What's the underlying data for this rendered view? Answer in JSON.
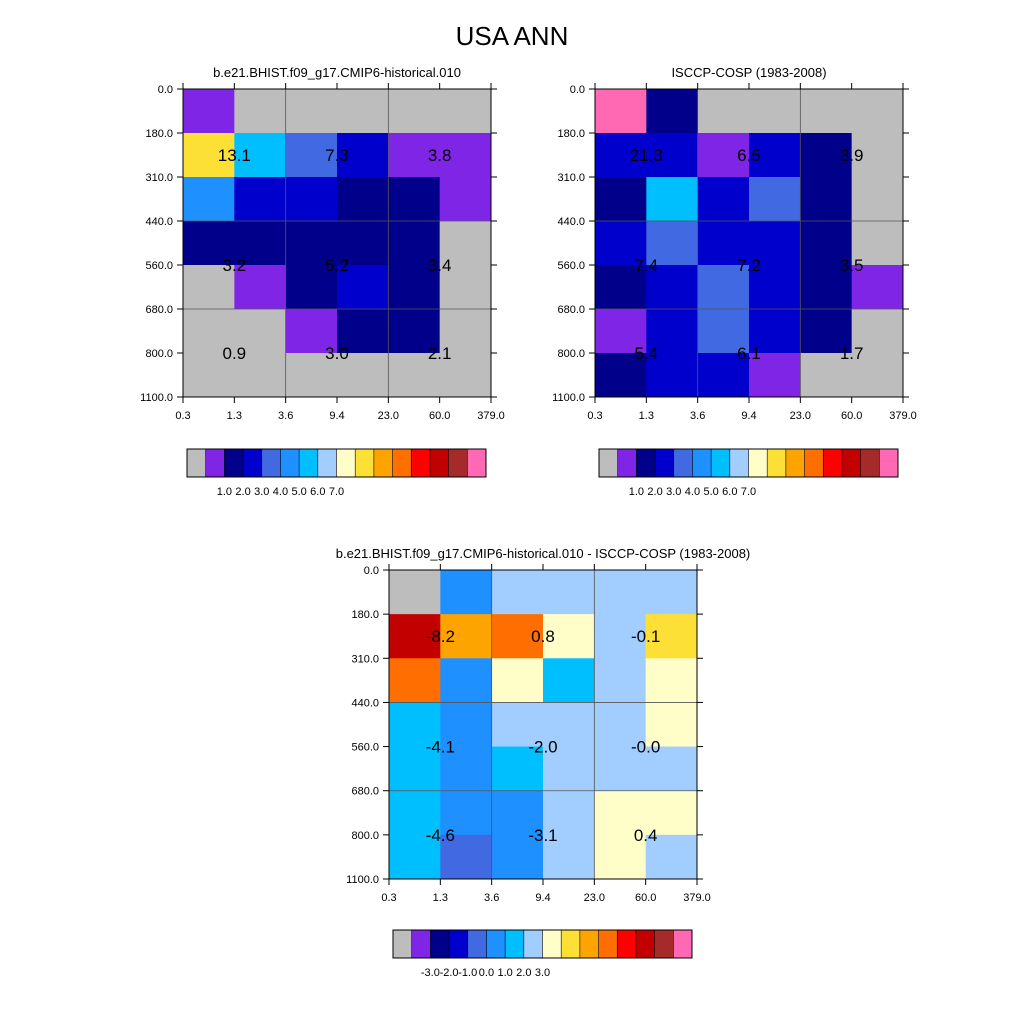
{
  "figure_title": "USA ANN",
  "chart_data": [
    {
      "type": "heatmap",
      "title": "b.e21.BHIST.f09_g17.CMIP6-historical.010",
      "x_ticks": [
        "0.3",
        "1.3",
        "3.6",
        "9.4",
        "23.0",
        "60.0",
        "379.0"
      ],
      "y_ticks": [
        "0.0",
        "180.0",
        "310.0",
        "440.0",
        "560.0",
        "680.0",
        "800.0",
        "1100.0"
      ],
      "colorbar_ticks": [
        "1.0",
        "2.0",
        "3.0",
        "4.0",
        "5.0",
        "6.0",
        "7.0"
      ],
      "cells": [
        [
          "#7f26e6",
          "#bdbdbd",
          "#bdbdbd",
          "#bdbdbd",
          "#bdbdbd",
          "#bdbdbd"
        ],
        [
          "#fde035",
          "#00bfff",
          "#4169e1",
          "#0000cd",
          "#7f26e6",
          "#7f26e6"
        ],
        [
          "#1e90ff",
          "#0000cd",
          "#0000cd",
          "#00008b",
          "#00008b",
          "#7f26e6"
        ],
        [
          "#00008b",
          "#00008b",
          "#00008b",
          "#00008b",
          "#00008b",
          "#bdbdbd"
        ],
        [
          "#bdbdbd",
          "#7f26e6",
          "#00008b",
          "#0000cd",
          "#00008b",
          "#bdbdbd"
        ],
        [
          "#bdbdbd",
          "#bdbdbd",
          "#7f26e6",
          "#00008b",
          "#00008b",
          "#bdbdbd"
        ],
        [
          "#bdbdbd",
          "#bdbdbd",
          "#bdbdbd",
          "#bdbdbd",
          "#bdbdbd",
          "#bdbdbd"
        ]
      ],
      "block_labels": [
        [
          "13.1",
          "7.3",
          "3.8"
        ],
        [
          "3.2",
          "5.2",
          "3.4"
        ],
        [
          "0.9",
          "3.0",
          "2.1"
        ]
      ]
    },
    {
      "type": "heatmap",
      "title": "ISCCP-COSP (1983-2008)",
      "x_ticks": [
        "0.3",
        "1.3",
        "3.6",
        "9.4",
        "23.0",
        "60.0",
        "379.0"
      ],
      "y_ticks": [
        "0.0",
        "180.0",
        "310.0",
        "440.0",
        "560.0",
        "680.0",
        "800.0",
        "1100.0"
      ],
      "colorbar_ticks": [
        "1.0",
        "2.0",
        "3.0",
        "4.0",
        "5.0",
        "6.0",
        "7.0"
      ],
      "cells": [
        [
          "#ff69b4",
          "#00008b",
          "#bdbdbd",
          "#bdbdbd",
          "#bdbdbd",
          "#bdbdbd"
        ],
        [
          "#0000cd",
          "#0000cd",
          "#7f26e6",
          "#0000cd",
          "#00008b",
          "#bdbdbd"
        ],
        [
          "#00008b",
          "#00bfff",
          "#0000cd",
          "#4169e1",
          "#00008b",
          "#bdbdbd"
        ],
        [
          "#0000cd",
          "#4169e1",
          "#0000cd",
          "#0000cd",
          "#00008b",
          "#bdbdbd"
        ],
        [
          "#00008b",
          "#0000cd",
          "#4169e1",
          "#0000cd",
          "#00008b",
          "#7f26e6"
        ],
        [
          "#7f26e6",
          "#0000cd",
          "#4169e1",
          "#0000cd",
          "#00008b",
          "#bdbdbd"
        ],
        [
          "#00008b",
          "#0000cd",
          "#0000cd",
          "#7f26e6",
          "#bdbdbd",
          "#bdbdbd"
        ]
      ],
      "block_labels": [
        [
          "21.3",
          "6.5",
          "3.9"
        ],
        [
          "7.4",
          "7.2",
          "3.5"
        ],
        [
          "5.4",
          "6.1",
          "1.7"
        ]
      ]
    },
    {
      "type": "heatmap",
      "title": "b.e21.BHIST.f09_g17.CMIP6-historical.010 - ISCCP-COSP (1983-2008)",
      "x_ticks": [
        "0.3",
        "1.3",
        "3.6",
        "9.4",
        "23.0",
        "60.0",
        "379.0"
      ],
      "y_ticks": [
        "0.0",
        "180.0",
        "310.0",
        "440.0",
        "560.0",
        "680.0",
        "800.0",
        "1100.0"
      ],
      "colorbar_ticks": [
        "-3.0",
        "-2.0",
        "-1.0",
        "0.0",
        "1.0",
        "2.0",
        "3.0"
      ],
      "cells": [
        [
          "#bdbdbd",
          "#1e90ff",
          "#a2cdff",
          "#a2cdff",
          "#a2cdff",
          "#a2cdff"
        ],
        [
          "#c30000",
          "#fda400",
          "#ff6e00",
          "#fffec8",
          "#a2cdff",
          "#fde035"
        ],
        [
          "#ff6e00",
          "#1e90ff",
          "#fffec8",
          "#00bfff",
          "#a2cdff",
          "#fffec8"
        ],
        [
          "#00bfff",
          "#1e90ff",
          "#a2cdff",
          "#a2cdff",
          "#a2cdff",
          "#fffec8"
        ],
        [
          "#00bfff",
          "#1e90ff",
          "#00bfff",
          "#a2cdff",
          "#a2cdff",
          "#a2cdff"
        ],
        [
          "#00bfff",
          "#1e90ff",
          "#1e90ff",
          "#a2cdff",
          "#fffec8",
          "#fffec8"
        ],
        [
          "#00bfff",
          "#4169e1",
          "#1e90ff",
          "#a2cdff",
          "#fffec8",
          "#a2cdff"
        ]
      ],
      "block_labels": [
        [
          "-8.2",
          "0.8",
          "-0.1"
        ],
        [
          "-4.1",
          "-2.0",
          "-0.0"
        ],
        [
          "-4.6",
          "-3.1",
          "0.4"
        ]
      ]
    }
  ],
  "colorbar_colors": [
    "#bdbdbd",
    "#7f26e6",
    "#00008b",
    "#0000cd",
    "#4169e1",
    "#1e90ff",
    "#00bfff",
    "#a2cdff",
    "#fffec8",
    "#fde035",
    "#fda400",
    "#ff6e00",
    "#ff0000",
    "#c30000",
    "#a52a2a",
    "#ff69b4"
  ]
}
